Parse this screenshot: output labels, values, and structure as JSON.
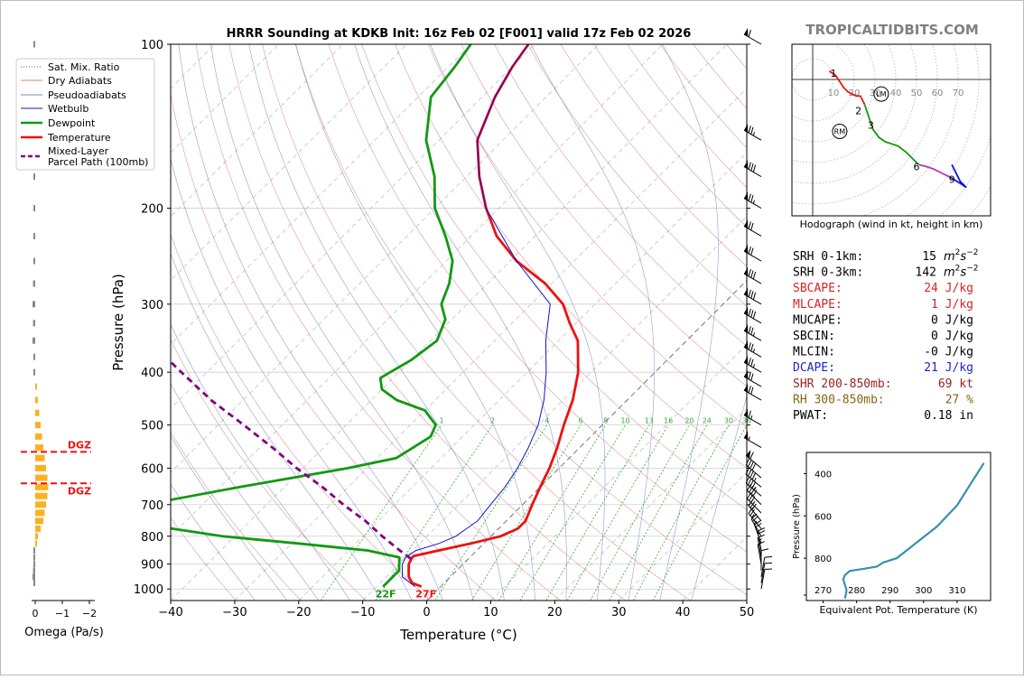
{
  "brand": "TROPICALTIDBITS.COM",
  "colors": {
    "temperature": "#ee1111",
    "dewpoint": "#119911",
    "wetbulb": "#1111cc",
    "parcel": "#800080",
    "dry_adiabat": "#d98080",
    "moist_adiabat": "#8080cc",
    "mixing_ratio": "#33aa33",
    "omega": "#ffb020",
    "dgz": "#ee1111",
    "theta_e": "#3a8fae",
    "brand": "#808080"
  },
  "chart_data": [
    {
      "type": "line",
      "name": "skew-t",
      "title": "HRRR Sounding at KDKB Init: 16z Feb 02 [F001] valid 17z Feb 02 2026",
      "xlabel": "Temperature (°C)",
      "ylabel": "Pressure (hPa)",
      "xlim": [
        -40,
        50
      ],
      "ylim": [
        1050,
        100
      ],
      "y_scale": "log",
      "skew": "45 degrees",
      "x_ticks": [
        -40,
        -30,
        -20,
        -10,
        0,
        10,
        20,
        30,
        40,
        50
      ],
      "y_ticks": [
        100,
        200,
        300,
        400,
        500,
        600,
        700,
        800,
        900,
        1000
      ],
      "grid": true,
      "mixing_ratio_labels": [
        "1",
        "2",
        "4",
        "6",
        "8",
        "10",
        "13",
        "16",
        "20",
        "24",
        "30",
        "36"
      ],
      "legend": {
        "placement": "top-left",
        "entries": [
          "Sat. Mix. Ratio",
          "Dry Adiabats",
          "Pseudoadiabats",
          "Wetbulb",
          "Dewpoint",
          "Temperature",
          "Mixed-Layer",
          "Parcel Path (100mb)"
        ]
      },
      "surface_labels": {
        "dewpoint": "22F",
        "temperature": "27F"
      },
      "series": [
        {
          "name": "Temperature",
          "p": [
            990,
            975,
            950,
            925,
            900,
            875,
            870,
            850,
            825,
            800,
            775,
            750,
            700,
            650,
            600,
            550,
            500,
            450,
            400,
            350,
            325,
            300,
            275,
            250,
            225,
            200,
            175,
            150,
            125,
            110,
            100
          ],
          "t": [
            -3,
            -5,
            -6.5,
            -7.5,
            -8.5,
            -9,
            -9,
            -6,
            -2,
            1.5,
            3,
            3,
            1.5,
            0,
            -1.5,
            -3.5,
            -6,
            -8.5,
            -12,
            -17,
            -21,
            -25,
            -31,
            -39,
            -46,
            -52,
            -58,
            -64,
            -68,
            -70,
            -71
          ]
        },
        {
          "name": "Dewpoint",
          "p": [
            990,
            975,
            950,
            925,
            900,
            875,
            850,
            825,
            800,
            775,
            750,
            720,
            700,
            650,
            600,
            575,
            550,
            525,
            500,
            470,
            450,
            430,
            410,
            380,
            350,
            320,
            300,
            275,
            250,
            225,
            200,
            175,
            150,
            125,
            110,
            100
          ],
          "t": [
            -9,
            -9,
            -9,
            -9,
            -10,
            -11,
            -17,
            -29,
            -42,
            -51,
            -57,
            -63,
            -59,
            -47,
            -33,
            -27,
            -26,
            -25,
            -26,
            -30,
            -36,
            -40,
            -42,
            -40,
            -39,
            -41,
            -44,
            -46,
            -49,
            -54,
            -60,
            -65,
            -72,
            -78,
            -79,
            -80
          ]
        },
        {
          "name": "Wetbulb",
          "p": [
            990,
            950,
            925,
            900,
            875,
            850,
            825,
            800,
            775,
            750,
            700,
            650,
            600,
            550,
            500,
            450,
            400,
            350,
            300,
            250,
            200,
            175,
            150,
            125,
            110,
            100
          ],
          "t": [
            -4,
            -7.5,
            -8.5,
            -9.5,
            -10,
            -9.5,
            -7,
            -5.5,
            -5,
            -4.5,
            -5,
            -5.5,
            -6.5,
            -8,
            -10,
            -13,
            -17,
            -22,
            -27,
            -39,
            -52,
            -58,
            -64,
            -68,
            -70,
            -71
          ]
        },
        {
          "name": "Parcel Path (100mb)",
          "p": [
            880,
            850,
            800,
            750,
            700,
            650,
            600,
            550,
            500,
            450,
            400,
            350,
            300,
            250,
            200,
            150,
            120
          ],
          "t": [
            -9,
            -12,
            -17,
            -22,
            -28,
            -34,
            -41,
            -48,
            -56,
            -65,
            -74,
            -84,
            -96,
            -110,
            -126,
            -146,
            -162
          ]
        }
      ]
    },
    {
      "type": "bar",
      "name": "omega",
      "xlabel": "Omega (Pa/s)",
      "x_ticks": [
        "0",
        "−1",
        "−2"
      ],
      "dgz_label": "DGZ",
      "dgz_bounds_hpa": [
        560,
        640
      ],
      "p": [
        975,
        950,
        925,
        900,
        875,
        850,
        825,
        800,
        775,
        750,
        725,
        700,
        675,
        650,
        625,
        600,
        575,
        550,
        525,
        500,
        475,
        450,
        425,
        400,
        375,
        350,
        325,
        300,
        275,
        250,
        225,
        200,
        175,
        150,
        125,
        100
      ],
      "values": [
        0.05,
        0.1,
        0.08,
        0.05,
        0.05,
        0.02,
        -0.05,
        -0.1,
        -0.2,
        -0.3,
        -0.35,
        -0.4,
        -0.45,
        -0.48,
        -0.45,
        -0.4,
        -0.35,
        -0.3,
        -0.25,
        -0.2,
        -0.15,
        -0.1,
        -0.05,
        0.05,
        0.05,
        0.1,
        0.08,
        0.1,
        0.08,
        0.05,
        0.05,
        0.05,
        0.05,
        0.03,
        0.02,
        0.01
      ]
    },
    {
      "type": "line",
      "name": "hodograph",
      "title": "Hodograph (wind in kt, height in km)",
      "ring_labels": [
        "10",
        "20",
        "30",
        "40",
        "50",
        "60",
        "70"
      ],
      "markers": [
        "LM",
        "RM"
      ],
      "height_labels": [
        {
          "label": "1",
          "u": 10,
          "v": 3
        },
        {
          "label": "2",
          "u": 22,
          "v": -15
        },
        {
          "label": "3",
          "u": 28,
          "v": -22
        },
        {
          "label": "6",
          "u": 50,
          "v": -42
        },
        {
          "label": "9",
          "u": 67,
          "v": -48
        }
      ],
      "storm_motion": {
        "LM": {
          "u": 33,
          "v": -7
        },
        "RM": {
          "u": 13,
          "v": -25
        }
      },
      "segments": [
        {
          "km": "0-1",
          "color": "#ee1111",
          "points": [
            [
              8,
              4
            ],
            [
              11,
              2
            ],
            [
              13,
              -1
            ],
            [
              15,
              -4
            ],
            [
              17,
              -6
            ],
            [
              19,
              -7
            ],
            [
              21,
              -8
            ],
            [
              23,
              -8
            ],
            [
              25,
              -12
            ]
          ]
        },
        {
          "km": "1-3",
          "color": "#119911",
          "points": [
            [
              25,
              -12
            ],
            [
              27,
              -18
            ],
            [
              29,
              -24
            ],
            [
              32,
              -28
            ],
            [
              35,
              -30
            ],
            [
              38,
              -31
            ],
            [
              41,
              -32
            ],
            [
              45,
              -35
            ],
            [
              49,
              -39
            ],
            [
              51,
              -41
            ]
          ]
        },
        {
          "km": "3-6",
          "color": "#bb33bb",
          "points": [
            [
              51,
              -41
            ],
            [
              55,
              -42
            ],
            [
              58,
              -43
            ],
            [
              62,
              -45
            ],
            [
              66,
              -47
            ]
          ]
        },
        {
          "km": "6-9",
          "color": "#1111ee",
          "points": [
            [
              66,
              -47
            ],
            [
              71,
              -50
            ],
            [
              74,
              -52
            ],
            [
              71,
              -49
            ],
            [
              67,
              -41
            ]
          ]
        }
      ]
    },
    {
      "type": "line",
      "name": "theta-e",
      "ylabel": "Pressure (hPa)",
      "xlabel": "Equivalent Pot. Temperature (K)",
      "x_ticks": [
        270,
        280,
        290,
        300,
        310
      ],
      "y_ticks": [
        400,
        600,
        800
      ],
      "xlim": [
        265,
        320
      ],
      "ylim": [
        1000,
        300
      ],
      "x": [
        276.5,
        276.8,
        277,
        276,
        276.5,
        278,
        282,
        286,
        288,
        292,
        296,
        300,
        304,
        307,
        310,
        312,
        314,
        316,
        318
      ],
      "y": [
        990,
        970,
        950,
        900,
        880,
        860,
        850,
        840,
        820,
        800,
        750,
        700,
        650,
        600,
        550,
        500,
        450,
        400,
        350
      ]
    }
  ],
  "indices": [
    {
      "label": "SRH 0-1km:",
      "value": "15",
      "unit": "m2s-2",
      "color": "#000000"
    },
    {
      "label": "SRH 0-3km:",
      "value": "142",
      "unit": "m2s-2",
      "color": "#000000"
    },
    {
      "label": "SBCAPE:",
      "value": "24 J/kg",
      "color": "#dd2222"
    },
    {
      "label": "MLCAPE:",
      "value": "1 J/kg",
      "color": "#dd2222"
    },
    {
      "label": "MUCAPE:",
      "value": "0 J/kg",
      "color": "#000000"
    },
    {
      "label": "SBCIN:",
      "value": "0 J/kg",
      "color": "#000000"
    },
    {
      "label": "MLCIN:",
      "value": "-0 J/kg",
      "color": "#000000"
    },
    {
      "label": "DCAPE:",
      "value": "21 J/kg",
      "color": "#2222cc"
    },
    {
      "label": "SHR 200-850mb:",
      "value": "69 kt",
      "color": "#992222"
    },
    {
      "label": "RH 300-850mb:",
      "value": "27 %",
      "color": "#886611"
    },
    {
      "label": "PWAT:",
      "value": "0.18 in",
      "color": "#000000"
    }
  ],
  "wind_barbs": [
    {
      "p": 100,
      "dir": 300,
      "kt": 60
    },
    {
      "p": 150,
      "dir": 300,
      "kt": 75
    },
    {
      "p": 175,
      "dir": 300,
      "kt": 80
    },
    {
      "p": 200,
      "dir": 300,
      "kt": 75
    },
    {
      "p": 225,
      "dir": 300,
      "kt": 70
    },
    {
      "p": 250,
      "dir": 300,
      "kt": 70
    },
    {
      "p": 275,
      "dir": 300,
      "kt": 80
    },
    {
      "p": 300,
      "dir": 300,
      "kt": 80
    },
    {
      "p": 325,
      "dir": 300,
      "kt": 80
    },
    {
      "p": 350,
      "dir": 300,
      "kt": 75
    },
    {
      "p": 375,
      "dir": 300,
      "kt": 75
    },
    {
      "p": 400,
      "dir": 300,
      "kt": 75
    },
    {
      "p": 425,
      "dir": 300,
      "kt": 70
    },
    {
      "p": 450,
      "dir": 300,
      "kt": 70
    },
    {
      "p": 500,
      "dir": 300,
      "kt": 65
    },
    {
      "p": 550,
      "dir": 300,
      "kt": 55
    },
    {
      "p": 600,
      "dir": 310,
      "kt": 60
    },
    {
      "p": 625,
      "dir": 310,
      "kt": 40
    },
    {
      "p": 650,
      "dir": 310,
      "kt": 45
    },
    {
      "p": 675,
      "dir": 310,
      "kt": 45
    },
    {
      "p": 700,
      "dir": 315,
      "kt": 40
    },
    {
      "p": 725,
      "dir": 315,
      "kt": 35
    },
    {
      "p": 750,
      "dir": 320,
      "kt": 30
    },
    {
      "p": 775,
      "dir": 320,
      "kt": 25
    },
    {
      "p": 800,
      "dir": 330,
      "kt": 25
    },
    {
      "p": 825,
      "dir": 340,
      "kt": 20
    },
    {
      "p": 850,
      "dir": 350,
      "kt": 20
    },
    {
      "p": 875,
      "dir": 350,
      "kt": 15
    },
    {
      "p": 900,
      "dir": 350,
      "kt": 10
    },
    {
      "p": 925,
      "dir": 360,
      "kt": 10
    },
    {
      "p": 950,
      "dir": 10,
      "kt": 10
    },
    {
      "p": 975,
      "dir": 10,
      "kt": 10
    },
    {
      "p": 1000,
      "dir": 10,
      "kt": 10
    }
  ]
}
